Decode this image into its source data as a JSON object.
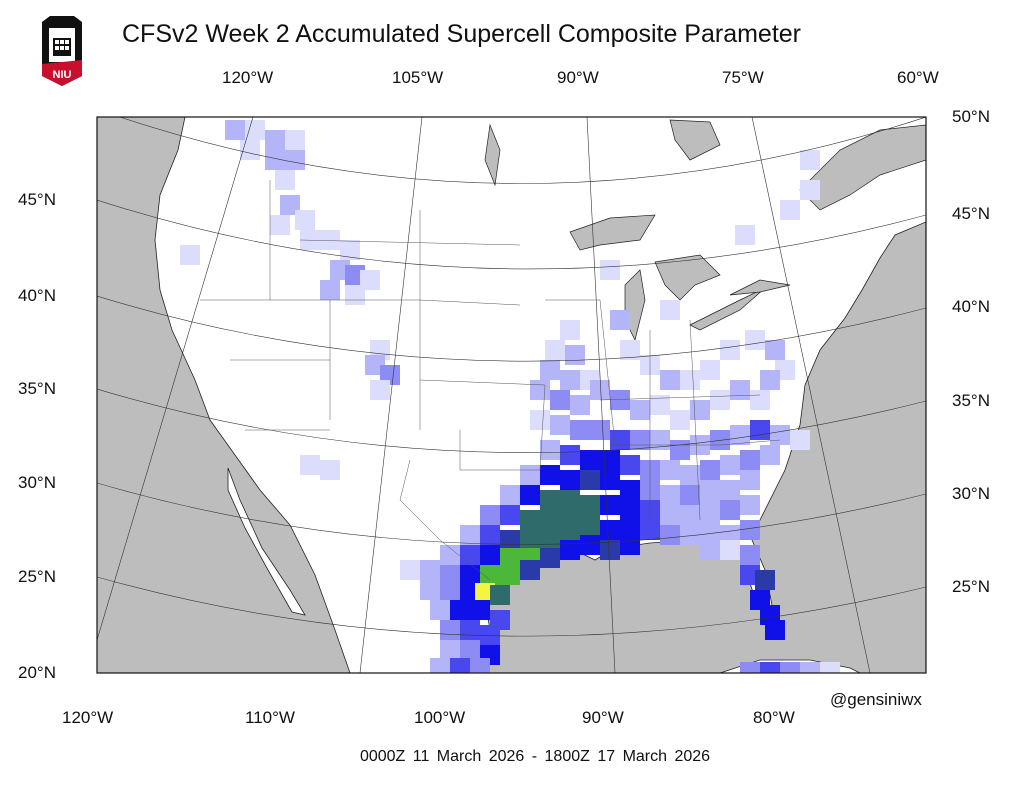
{
  "title": "CFSv2 Week 2 Accumulated Supercell Composite Parameter",
  "logo_text": "NIU",
  "credit": "@gensiniwx",
  "date_range": "0000Z 11  March  2026  - 1800Z 17  March  2026",
  "axes": {
    "top_lon": [
      "120°W",
      "105°W",
      "90°W",
      "75°W",
      "60°W"
    ],
    "bottom_lon": [
      "120°W",
      "110°W",
      "100°W",
      "90°W",
      "80°W"
    ],
    "left_lat": [
      "45°N",
      "40°N",
      "35°N",
      "30°N",
      "25°N",
      "20°N"
    ],
    "right_lat": [
      "50°N",
      "45°N",
      "40°N",
      "35°N",
      "30°N",
      "25°N"
    ]
  },
  "colors": {
    "ocean": "#bdbdbd",
    "land": "#ffffff",
    "scp_low": "#dcdcfc",
    "scp_mid": "#8c8cf4",
    "scp_high": "#1010e8",
    "scp_teal": "#2f6b6b",
    "scp_green": "#4cb83a",
    "scp_max": "#f4f442"
  }
}
